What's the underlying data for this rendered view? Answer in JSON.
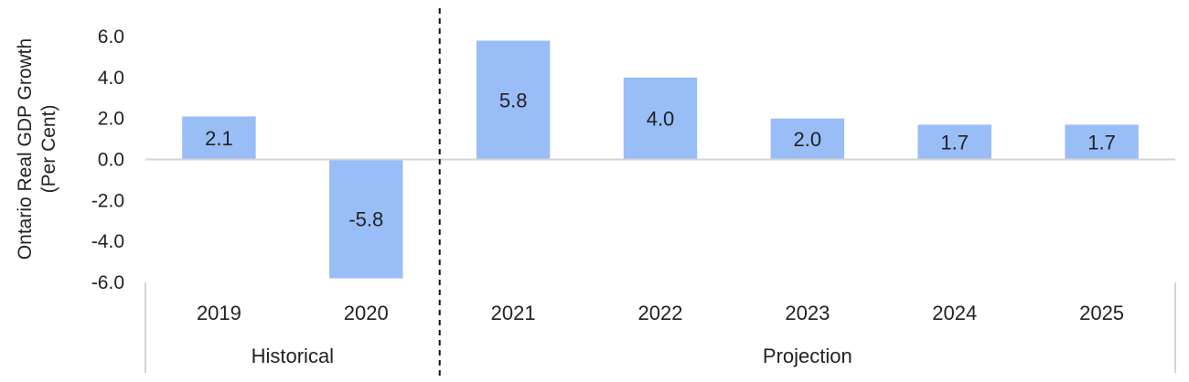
{
  "chart_data": {
    "type": "bar",
    "ylabel_lines": [
      "Ontario Real GDP Growth",
      "(Per Cent)"
    ],
    "categories": [
      "2019",
      "2020",
      "2021",
      "2022",
      "2023",
      "2024",
      "2025"
    ],
    "values": [
      2.1,
      -5.8,
      5.8,
      4.0,
      2.0,
      1.7,
      1.7
    ],
    "value_labels": [
      "2.1",
      "-5.8",
      "5.8",
      "4.0",
      "2.0",
      "1.7",
      "1.7"
    ],
    "ylim": [
      -6.0,
      6.0
    ],
    "yticks": [
      "6.0",
      "4.0",
      "2.0",
      "0.0",
      "-2.0",
      "-4.0",
      "-6.0"
    ],
    "ytick_values": [
      6,
      4,
      2,
      0,
      -2,
      -4,
      -6
    ],
    "groups": [
      {
        "label": "Historical",
        "categories": [
          "2019",
          "2020"
        ]
      },
      {
        "label": "Projection",
        "categories": [
          "2021",
          "2022",
          "2023",
          "2024",
          "2025"
        ]
      }
    ],
    "bar_color": "#99bdf6",
    "grid": false,
    "legend": "none"
  }
}
